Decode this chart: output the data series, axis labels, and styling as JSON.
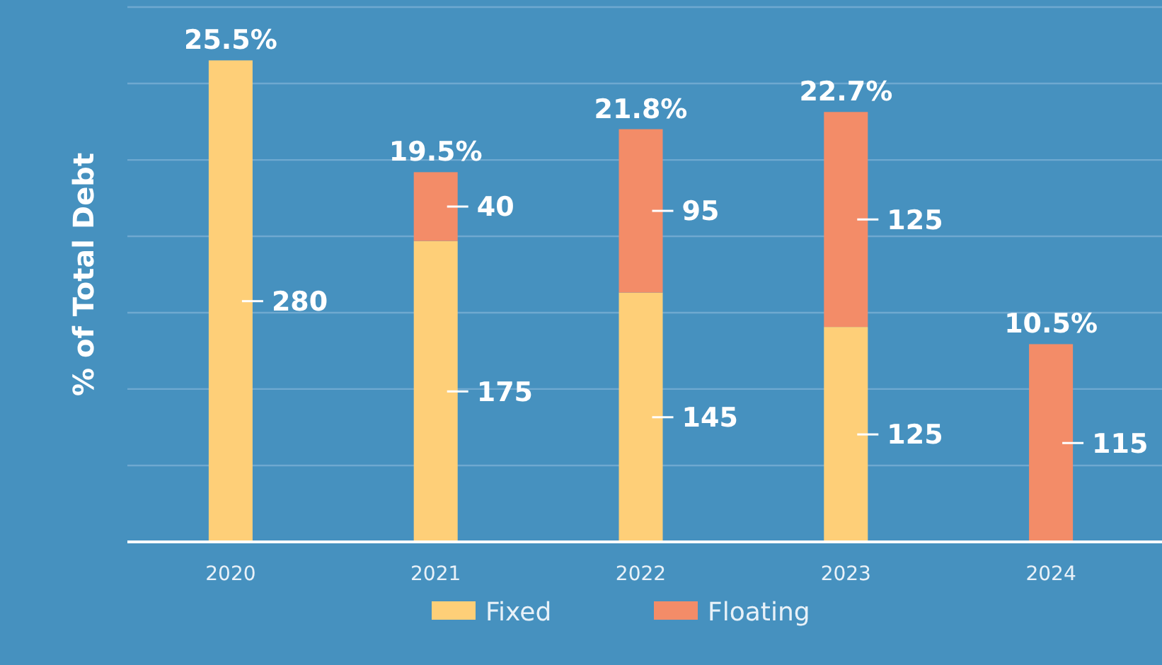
{
  "chart_data": {
    "type": "bar",
    "stacked": true,
    "ylabel": "% of Total Debt",
    "categories": [
      "2020",
      "2021",
      "2022",
      "2023",
      "2024"
    ],
    "series": [
      {
        "name": "Fixed",
        "color": "#fecf78",
        "values": [
          280,
          175,
          145,
          125,
          null
        ]
      },
      {
        "name": "Floating",
        "color": "#f38c68",
        "values": [
          null,
          40,
          95,
          125,
          115
        ]
      }
    ],
    "annotations": [
      {
        "text": "25.5%",
        "x": "2020",
        "y": 280
      },
      {
        "text": "19.5%",
        "x": "2021",
        "y": 215
      },
      {
        "text": "21.8%",
        "x": "2022",
        "y": 240
      },
      {
        "text": "22.7%",
        "x": "2023",
        "y": 250
      },
      {
        "text": "10.5%",
        "x": "2024",
        "y": 115
      }
    ],
    "data_labels": true,
    "ylim": [
      0,
      311
    ],
    "yticks": [
      {
        "value": 0,
        "label": null
      },
      {
        "value": 44.4,
        "label": null
      },
      {
        "value": 88.9,
        "label": null
      },
      {
        "value": 133.3,
        "label": null
      },
      {
        "value": 177.7,
        "label": null
      },
      {
        "value": 222.1,
        "label": null
      },
      {
        "value": 266.6,
        "label": null
      },
      {
        "value": 311,
        "label": null
      }
    ],
    "tick_labels": "x",
    "grid": "y",
    "legend": "bottom"
  }
}
